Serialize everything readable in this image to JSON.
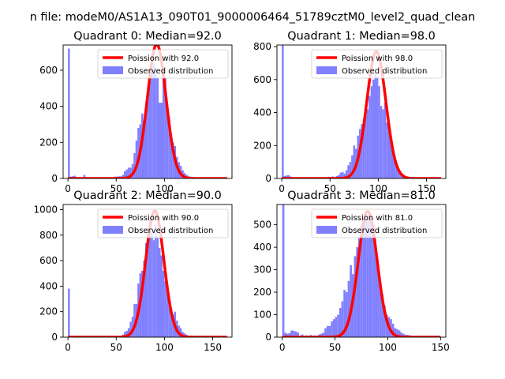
{
  "figure_title": "n file: modeM0/AS1A13_090T01_9000006464_51789cztM0_level2_quad_clean",
  "colors": {
    "histogram": "#8080ff",
    "poisson_curve": "#ff0000",
    "axes": "#000000"
  },
  "chart_data": [
    {
      "type": "bar",
      "title": "Quadrant 0: Median=92.0",
      "legend_position": "top-right",
      "series": [
        {
          "name": "Poission with 92.0",
          "kind": "line",
          "mean": 92.0,
          "peak": 745
        },
        {
          "name": "Observed distribution",
          "kind": "histogram"
        }
      ],
      "xlim": [
        -5,
        170
      ],
      "ylim": [
        0,
        740
      ],
      "xticks": [
        0,
        50,
        100
      ],
      "yticks": [
        0,
        200,
        400,
        600
      ],
      "bins": [
        [
          0,
          2,
          720
        ],
        [
          2,
          4,
          10
        ],
        [
          4,
          6,
          12
        ],
        [
          6,
          8,
          15
        ],
        [
          8,
          10,
          8
        ],
        [
          12,
          14,
          6
        ],
        [
          16,
          18,
          20
        ],
        [
          18,
          20,
          8
        ],
        [
          22,
          24,
          5
        ],
        [
          28,
          30,
          5
        ],
        [
          38,
          40,
          6
        ],
        [
          48,
          50,
          10
        ],
        [
          50,
          52,
          10
        ],
        [
          52,
          54,
          12
        ],
        [
          54,
          56,
          12
        ],
        [
          56,
          58,
          20
        ],
        [
          58,
          60,
          40
        ],
        [
          60,
          62,
          50
        ],
        [
          62,
          64,
          60
        ],
        [
          64,
          66,
          60
        ],
        [
          66,
          68,
          80
        ],
        [
          68,
          70,
          140
        ],
        [
          70,
          72,
          210
        ],
        [
          72,
          74,
          280
        ],
        [
          74,
          76,
          300
        ],
        [
          76,
          78,
          360
        ],
        [
          78,
          80,
          300
        ],
        [
          80,
          82,
          420
        ],
        [
          82,
          84,
          500
        ],
        [
          84,
          86,
          540
        ],
        [
          86,
          88,
          600
        ],
        [
          88,
          90,
          640
        ],
        [
          90,
          92,
          620
        ],
        [
          92,
          94,
          560
        ],
        [
          94,
          96,
          420
        ],
        [
          96,
          98,
          420
        ],
        [
          98,
          100,
          540
        ],
        [
          100,
          102,
          560
        ],
        [
          102,
          104,
          400
        ],
        [
          104,
          106,
          340
        ],
        [
          106,
          108,
          240
        ],
        [
          108,
          110,
          200
        ],
        [
          110,
          112,
          180
        ],
        [
          112,
          114,
          120
        ],
        [
          114,
          116,
          90
        ],
        [
          116,
          118,
          70
        ],
        [
          118,
          120,
          45
        ],
        [
          120,
          122,
          30
        ],
        [
          122,
          124,
          20
        ],
        [
          124,
          126,
          12
        ],
        [
          126,
          128,
          10
        ],
        [
          128,
          130,
          8
        ],
        [
          132,
          134,
          6
        ],
        [
          138,
          140,
          5
        ],
        [
          144,
          146,
          5
        ]
      ]
    },
    {
      "type": "bar",
      "title": "Quadrant 1: Median=98.0",
      "legend_position": "top-right",
      "series": [
        {
          "name": "Poission with 98.0",
          "kind": "line",
          "mean": 98.0,
          "peak": 770
        },
        {
          "name": "Observed distribution",
          "kind": "histogram"
        }
      ],
      "xlim": [
        -5,
        170
      ],
      "ylim": [
        0,
        810
      ],
      "xticks": [
        0,
        50,
        100,
        150
      ],
      "yticks": [
        0,
        200,
        400,
        600,
        800
      ],
      "bins": [
        [
          0,
          2,
          840
        ],
        [
          2,
          4,
          15
        ],
        [
          4,
          6,
          18
        ],
        [
          6,
          8,
          20
        ],
        [
          8,
          10,
          12
        ],
        [
          12,
          14,
          8
        ],
        [
          20,
          22,
          6
        ],
        [
          30,
          32,
          5
        ],
        [
          40,
          42,
          8
        ],
        [
          48,
          50,
          10
        ],
        [
          52,
          54,
          12
        ],
        [
          56,
          58,
          15
        ],
        [
          58,
          60,
          20
        ],
        [
          60,
          62,
          35
        ],
        [
          62,
          64,
          40
        ],
        [
          64,
          66,
          30
        ],
        [
          66,
          68,
          50
        ],
        [
          68,
          70,
          80
        ],
        [
          70,
          72,
          100
        ],
        [
          72,
          74,
          140
        ],
        [
          74,
          76,
          200
        ],
        [
          76,
          78,
          180
        ],
        [
          78,
          80,
          260
        ],
        [
          80,
          82,
          300
        ],
        [
          82,
          84,
          330
        ],
        [
          84,
          86,
          360
        ],
        [
          86,
          88,
          380
        ],
        [
          88,
          90,
          420
        ],
        [
          90,
          92,
          500
        ],
        [
          92,
          94,
          560
        ],
        [
          94,
          96,
          600
        ],
        [
          96,
          98,
          640
        ],
        [
          98,
          100,
          620
        ],
        [
          100,
          102,
          560
        ],
        [
          102,
          104,
          440
        ],
        [
          104,
          106,
          420
        ],
        [
          106,
          108,
          460
        ],
        [
          108,
          110,
          340
        ],
        [
          110,
          112,
          320
        ],
        [
          112,
          114,
          220
        ],
        [
          114,
          116,
          180
        ],
        [
          116,
          118,
          130
        ],
        [
          118,
          120,
          90
        ],
        [
          120,
          122,
          60
        ],
        [
          122,
          124,
          40
        ],
        [
          124,
          126,
          30
        ],
        [
          126,
          128,
          15
        ],
        [
          128,
          130,
          10
        ],
        [
          130,
          132,
          8
        ],
        [
          134,
          136,
          5
        ],
        [
          140,
          142,
          5
        ]
      ]
    },
    {
      "type": "bar",
      "title": "Quadrant 2: Median=90.0",
      "legend_position": "top-right",
      "series": [
        {
          "name": "Poission with 90.0",
          "kind": "line",
          "mean": 90.0,
          "peak": 990
        },
        {
          "name": "Observed distribution",
          "kind": "histogram"
        }
      ],
      "xlim": [
        -5,
        170
      ],
      "ylim": [
        0,
        1040
      ],
      "xticks": [
        0,
        50,
        100,
        150
      ],
      "yticks": [
        0,
        200,
        400,
        600,
        800,
        1000
      ],
      "bins": [
        [
          0,
          2,
          380
        ],
        [
          2,
          4,
          8
        ],
        [
          4,
          6,
          10
        ],
        [
          8,
          10,
          6
        ],
        [
          16,
          18,
          5
        ],
        [
          30,
          32,
          5
        ],
        [
          48,
          50,
          8
        ],
        [
          54,
          56,
          10
        ],
        [
          56,
          58,
          20
        ],
        [
          58,
          60,
          40
        ],
        [
          60,
          62,
          50
        ],
        [
          62,
          64,
          70
        ],
        [
          64,
          66,
          120
        ],
        [
          66,
          68,
          160
        ],
        [
          68,
          70,
          260
        ],
        [
          70,
          72,
          260
        ],
        [
          72,
          74,
          420
        ],
        [
          74,
          76,
          500
        ],
        [
          76,
          78,
          520
        ],
        [
          78,
          80,
          600
        ],
        [
          80,
          82,
          740
        ],
        [
          82,
          84,
          840
        ],
        [
          84,
          86,
          900
        ],
        [
          86,
          88,
          820
        ],
        [
          88,
          90,
          760
        ],
        [
          90,
          92,
          880
        ],
        [
          92,
          94,
          780
        ],
        [
          94,
          96,
          700
        ],
        [
          96,
          98,
          640
        ],
        [
          98,
          100,
          520
        ],
        [
          100,
          102,
          440
        ],
        [
          102,
          104,
          380
        ],
        [
          104,
          106,
          300
        ],
        [
          106,
          108,
          220
        ],
        [
          108,
          110,
          180
        ],
        [
          110,
          112,
          200
        ],
        [
          112,
          114,
          130
        ],
        [
          114,
          116,
          90
        ],
        [
          116,
          118,
          70
        ],
        [
          118,
          120,
          40
        ],
        [
          120,
          122,
          30
        ],
        [
          122,
          124,
          20
        ],
        [
          124,
          126,
          12
        ],
        [
          126,
          128,
          10
        ],
        [
          128,
          130,
          8
        ],
        [
          132,
          134,
          6
        ],
        [
          140,
          142,
          5
        ]
      ]
    },
    {
      "type": "bar",
      "title": "Quadrant 3: Median=81.0",
      "legend_position": "top-right",
      "series": [
        {
          "name": "Poission with 81.0",
          "kind": "line",
          "mean": 81.0,
          "peak": 560
        },
        {
          "name": "Observed distribution",
          "kind": "histogram"
        }
      ],
      "xlim": [
        -5,
        155
      ],
      "ylim": [
        0,
        590
      ],
      "xticks": [
        0,
        50,
        100,
        150
      ],
      "yticks": [
        0,
        100,
        200,
        300,
        400,
        500
      ],
      "bins": [
        [
          0,
          2,
          590
        ],
        [
          2,
          4,
          20
        ],
        [
          4,
          6,
          15
        ],
        [
          6,
          8,
          18
        ],
        [
          8,
          10,
          30
        ],
        [
          10,
          12,
          28
        ],
        [
          12,
          14,
          25
        ],
        [
          14,
          16,
          20
        ],
        [
          18,
          20,
          12
        ],
        [
          22,
          24,
          8
        ],
        [
          26,
          28,
          10
        ],
        [
          30,
          32,
          8
        ],
        [
          34,
          36,
          12
        ],
        [
          36,
          38,
          15
        ],
        [
          38,
          40,
          20
        ],
        [
          40,
          42,
          40
        ],
        [
          42,
          44,
          50
        ],
        [
          44,
          46,
          50
        ],
        [
          46,
          48,
          70
        ],
        [
          48,
          50,
          80
        ],
        [
          50,
          52,
          90
        ],
        [
          52,
          54,
          100
        ],
        [
          54,
          56,
          130
        ],
        [
          56,
          58,
          160
        ],
        [
          58,
          60,
          210
        ],
        [
          60,
          62,
          200
        ],
        [
          62,
          64,
          250
        ],
        [
          64,
          66,
          320
        ],
        [
          66,
          68,
          280
        ],
        [
          68,
          70,
          360
        ],
        [
          70,
          72,
          400
        ],
        [
          72,
          74,
          440
        ],
        [
          74,
          76,
          500
        ],
        [
          76,
          78,
          520
        ],
        [
          78,
          80,
          560
        ],
        [
          80,
          82,
          520
        ],
        [
          82,
          84,
          540
        ],
        [
          84,
          86,
          480
        ],
        [
          86,
          88,
          500
        ],
        [
          88,
          90,
          380
        ],
        [
          90,
          92,
          300
        ],
        [
          92,
          94,
          240
        ],
        [
          94,
          96,
          190
        ],
        [
          96,
          98,
          140
        ],
        [
          98,
          100,
          100
        ],
        [
          100,
          102,
          90
        ],
        [
          102,
          104,
          80
        ],
        [
          104,
          106,
          60
        ],
        [
          106,
          108,
          40
        ],
        [
          108,
          110,
          35
        ],
        [
          110,
          112,
          30
        ],
        [
          112,
          114,
          20
        ],
        [
          114,
          116,
          15
        ],
        [
          116,
          118,
          10
        ],
        [
          118,
          120,
          10
        ],
        [
          120,
          122,
          8
        ],
        [
          122,
          124,
          6
        ],
        [
          124,
          126,
          5
        ],
        [
          128,
          130,
          5
        ],
        [
          136,
          138,
          5
        ]
      ]
    }
  ]
}
